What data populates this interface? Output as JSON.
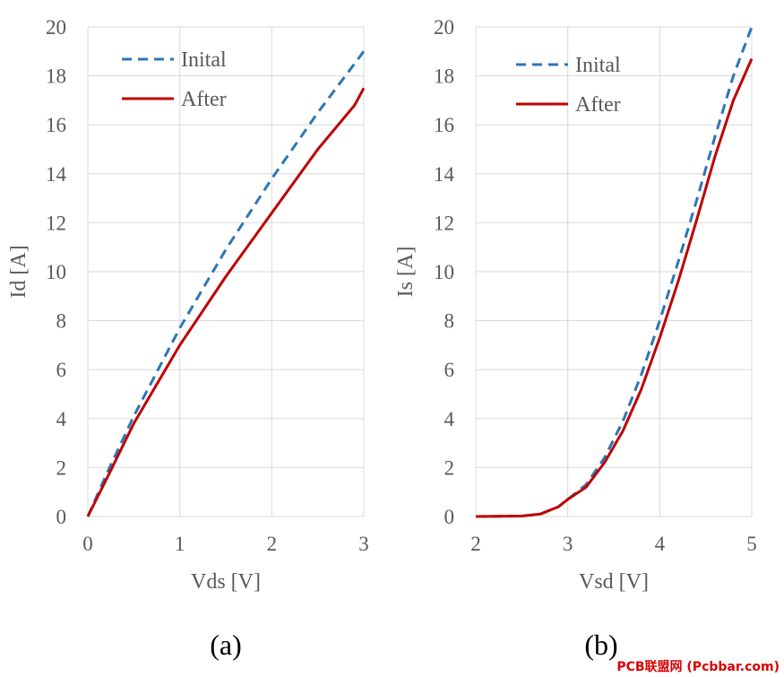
{
  "figure": {
    "panels": [
      {
        "label": "(a)"
      },
      {
        "label": "(b)"
      }
    ],
    "watermark": "PCB联盟网 (Pcbbar.com)"
  },
  "colors": {
    "initial": "#2E75B6",
    "after": "#C00000",
    "grid": "#D9D9D9",
    "tick_text": "#595959"
  },
  "chart_data": [
    {
      "type": "line",
      "xlabel": "Vds [V]",
      "ylabel": "Id [A]",
      "xlim": [
        0,
        3
      ],
      "ylim": [
        0,
        20
      ],
      "x_ticks": [
        0,
        1,
        2,
        3
      ],
      "y_ticks": [
        0,
        2,
        4,
        6,
        8,
        10,
        12,
        14,
        16,
        18,
        20
      ],
      "grid": true,
      "legend_position": "top-left",
      "series": [
        {
          "name": "Inital",
          "style": "dashed",
          "x": [
            0,
            0.2,
            0.5,
            1.0,
            1.5,
            2.0,
            2.5,
            3.0
          ],
          "y": [
            0,
            1.7,
            4.1,
            7.7,
            10.9,
            13.8,
            16.5,
            19.0
          ]
        },
        {
          "name": "After",
          "style": "solid",
          "x": [
            0,
            0.2,
            0.5,
            1.0,
            1.5,
            2.0,
            2.5,
            2.9,
            3.0
          ],
          "y": [
            0,
            1.5,
            3.8,
            7.0,
            9.8,
            12.4,
            15.0,
            16.8,
            17.5
          ]
        }
      ]
    },
    {
      "type": "line",
      "xlabel": "Vsd [V]",
      "ylabel": "Is [A]",
      "xlim": [
        2,
        5
      ],
      "ylim": [
        0,
        20
      ],
      "x_ticks": [
        2,
        3,
        4,
        5
      ],
      "y_ticks": [
        0,
        2,
        4,
        6,
        8,
        10,
        12,
        14,
        16,
        18,
        20
      ],
      "grid": true,
      "legend_position": "top-left",
      "series": [
        {
          "name": "Inital",
          "style": "dashed",
          "x": [
            2.0,
            2.5,
            2.7,
            2.9,
            3.0,
            3.2,
            3.4,
            3.6,
            3.8,
            4.0,
            4.2,
            4.4,
            4.6,
            4.8,
            5.0
          ],
          "y": [
            0,
            0.02,
            0.1,
            0.4,
            0.7,
            1.3,
            2.4,
            3.9,
            5.8,
            8.0,
            10.4,
            12.9,
            15.5,
            18.0,
            20.0
          ]
        },
        {
          "name": "After",
          "style": "solid",
          "x": [
            2.0,
            2.5,
            2.7,
            2.9,
            3.0,
            3.2,
            3.4,
            3.6,
            3.8,
            4.0,
            4.2,
            4.4,
            4.6,
            4.8,
            5.0
          ],
          "y": [
            0,
            0.02,
            0.1,
            0.4,
            0.7,
            1.2,
            2.2,
            3.5,
            5.2,
            7.3,
            9.6,
            12.1,
            14.7,
            17.0,
            18.7
          ]
        }
      ]
    }
  ]
}
